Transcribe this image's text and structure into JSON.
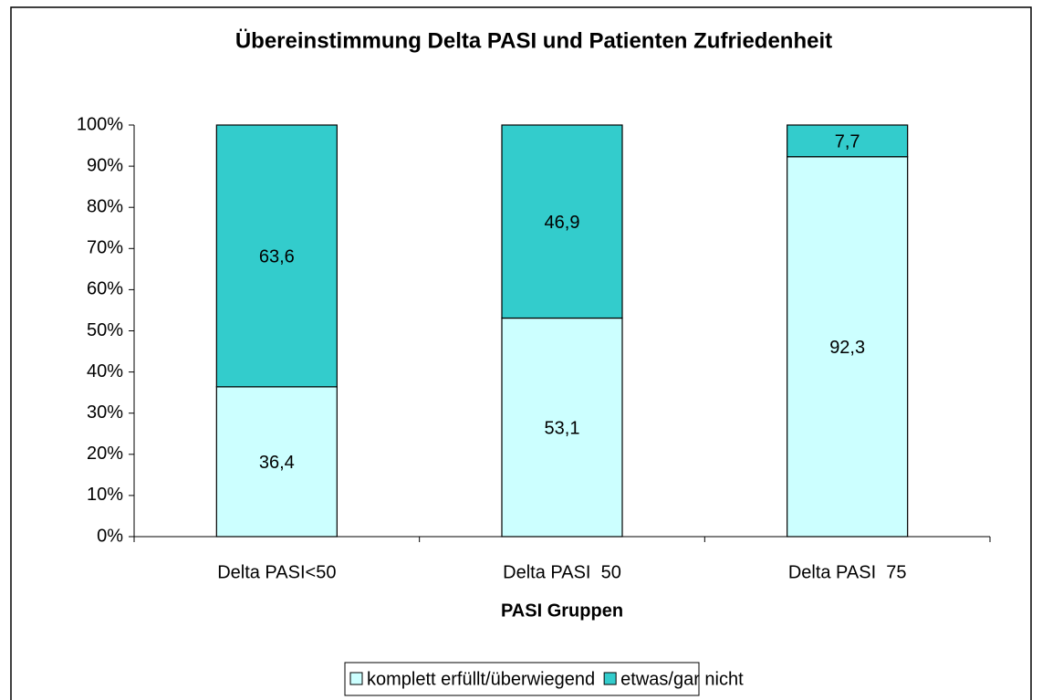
{
  "chart_data": {
    "type": "stacked_bar",
    "title": "Übereinstimmung Delta PASI und Patienten Zufriedenheit",
    "x_label": "PASI Gruppen",
    "categories": [
      "Delta PASI<50",
      "Delta PASI  50",
      "Delta PASI  75"
    ],
    "series": [
      {
        "name": "komplett erfüllt/überwiegend",
        "color": "#ccffff",
        "values": [
          36.4,
          53.1,
          92.3
        ],
        "value_labels": [
          "36,4",
          "53,1",
          "92,3"
        ]
      },
      {
        "name": "etwas/gar nicht",
        "color": "#33cccc",
        "values": [
          63.6,
          46.9,
          7.7
        ],
        "value_labels": [
          "63,6",
          "46,9",
          "7,7"
        ]
      }
    ],
    "ylim": [
      0,
      100
    ],
    "yticks": [
      {
        "value": 0,
        "label": "0%"
      },
      {
        "value": 10,
        "label": "10%"
      },
      {
        "value": 20,
        "label": "20%"
      },
      {
        "value": 30,
        "label": "30%"
      },
      {
        "value": 40,
        "label": "40%"
      },
      {
        "value": 50,
        "label": "50%"
      },
      {
        "value": 60,
        "label": "60%"
      },
      {
        "value": 70,
        "label": "70%"
      },
      {
        "value": 80,
        "label": "80%"
      },
      {
        "value": 90,
        "label": "90%"
      },
      {
        "value": 100,
        "label": "100%"
      }
    ],
    "legend": "bottom"
  }
}
